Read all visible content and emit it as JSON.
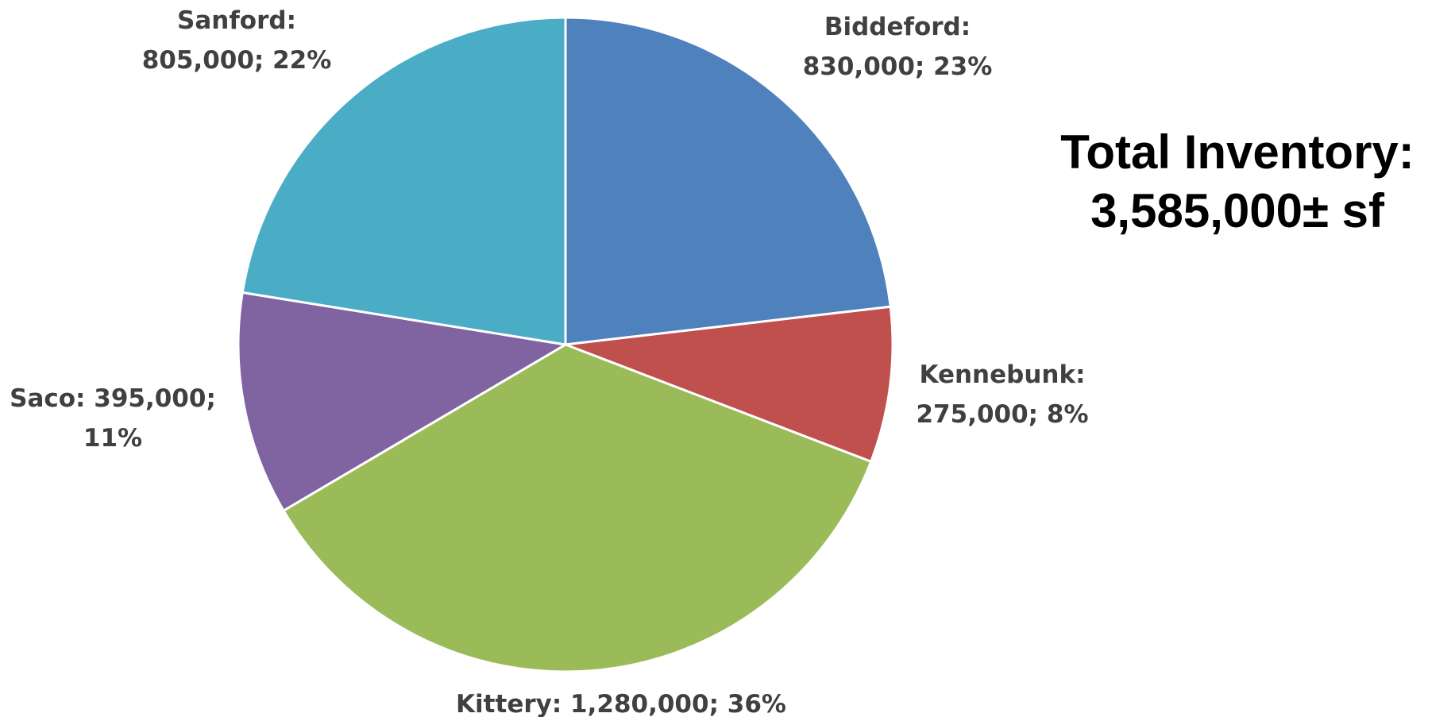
{
  "chart_data": {
    "type": "pie",
    "unit": "sf",
    "slices": [
      {
        "name": "Biddeford",
        "value": 830000,
        "percent": 23,
        "color": "#4F81BD",
        "label_lines": [
          "Biddeford:",
          "830,000; 23%"
        ]
      },
      {
        "name": "Kennebunk",
        "value": 275000,
        "percent": 8,
        "color": "#C0504D",
        "label_lines": [
          "Kennebunk:",
          "275,000; 8%"
        ]
      },
      {
        "name": "Kittery",
        "value": 1280000,
        "percent": 36,
        "color": "#9BBB59",
        "label_lines": [
          "Kittery: 1,280,000; 36%"
        ]
      },
      {
        "name": "Saco",
        "value": 395000,
        "percent": 11,
        "color": "#8064A2",
        "label_lines": [
          "Saco: 395,000;",
          "11%"
        ]
      },
      {
        "name": "Sanford",
        "value": 805000,
        "percent": 22,
        "color": "#4BACC6",
        "label_lines": [
          "Sanford:",
          "805,000; 22%"
        ]
      }
    ]
  },
  "total": {
    "line1": "Total Inventory:",
    "line2": "3,585,000± sf"
  }
}
